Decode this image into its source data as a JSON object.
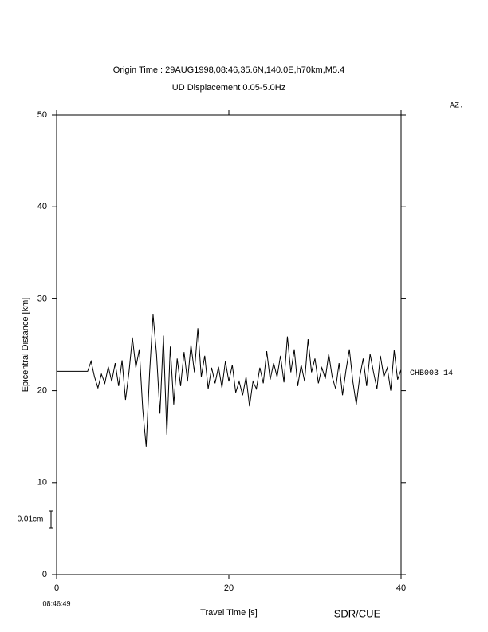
{
  "chart_data": {
    "type": "line",
    "title": "Origin Time : 29AUG1998,08:46,35.6N,140.0E,h70km,M5.4",
    "subtitle": "UD Displacement 0.05-5.0Hz",
    "corner_label": "AZ.",
    "x_label": "Travel Time [s]",
    "y_label": "Epicentral Distance [km]",
    "start_time": "08:46:49",
    "credit": "SDR/CUE",
    "scale_label": "0.01cm",
    "xlim": [
      0,
      40
    ],
    "ylim": [
      0,
      50
    ],
    "xticks": [
      0,
      20,
      40
    ],
    "yticks": [
      0,
      10,
      20,
      30,
      40,
      50
    ],
    "grid": false,
    "x": [
      0,
      3.6,
      4,
      4.4,
      4.8,
      5.2,
      5.6,
      6,
      6.4,
      6.8,
      7.2,
      7.6,
      8,
      8.4,
      8.8,
      9.2,
      9.6,
      10,
      10.4,
      10.8,
      11.2,
      11.6,
      12,
      12.4,
      12.8,
      13.2,
      13.6,
      14,
      14.4,
      14.8,
      15.2,
      15.6,
      16,
      16.4,
      16.8,
      17.2,
      17.6,
      18,
      18.4,
      18.8,
      19.2,
      19.6,
      20,
      20.4,
      20.8,
      21.2,
      21.6,
      22,
      22.4,
      22.8,
      23.2,
      23.6,
      24,
      24.4,
      24.8,
      25.2,
      25.6,
      26,
      26.4,
      26.8,
      27.2,
      27.6,
      28,
      28.4,
      28.8,
      29.2,
      29.6,
      30,
      30.4,
      30.8,
      31.2,
      31.6,
      32,
      32.4,
      32.8,
      33.2,
      33.6,
      34,
      34.4,
      34.8,
      35.2,
      35.6,
      36,
      36.4,
      36.8,
      37.2,
      37.6,
      38,
      38.4,
      38.8,
      39.2,
      39.6,
      40
    ],
    "series": [
      {
        "name": "CHB003 14",
        "color": "#000000",
        "values": [
          22.1,
          22.1,
          23.2,
          21.5,
          20.3,
          21.8,
          20.8,
          22.6,
          21.0,
          23.0,
          20.5,
          23.3,
          19.0,
          22.0,
          25.8,
          22.5,
          24.5,
          18.0,
          13.9,
          22.0,
          28.3,
          24.0,
          17.5,
          26.0,
          15.2,
          24.8,
          18.5,
          23.5,
          20.5,
          24.2,
          21.0,
          25.0,
          22.0,
          26.8,
          21.5,
          23.8,
          20.2,
          22.5,
          20.8,
          22.6,
          20.3,
          23.2,
          21.0,
          22.8,
          19.8,
          21.0,
          19.5,
          21.5,
          18.3,
          21.0,
          20.2,
          22.5,
          20.8,
          24.3,
          21.2,
          23.0,
          21.5,
          23.8,
          20.9,
          25.9,
          22.0,
          24.5,
          20.5,
          22.8,
          21.0,
          25.6,
          22.0,
          23.5,
          20.8,
          22.5,
          21.3,
          24.0,
          21.5,
          20.2,
          23.0,
          19.5,
          22.2,
          24.5,
          21.0,
          18.5,
          21.5,
          23.5,
          20.5,
          24.0,
          22.0,
          20.2,
          23.8,
          21.5,
          22.5,
          20.0,
          24.4,
          21.2,
          22.3
        ]
      }
    ]
  }
}
